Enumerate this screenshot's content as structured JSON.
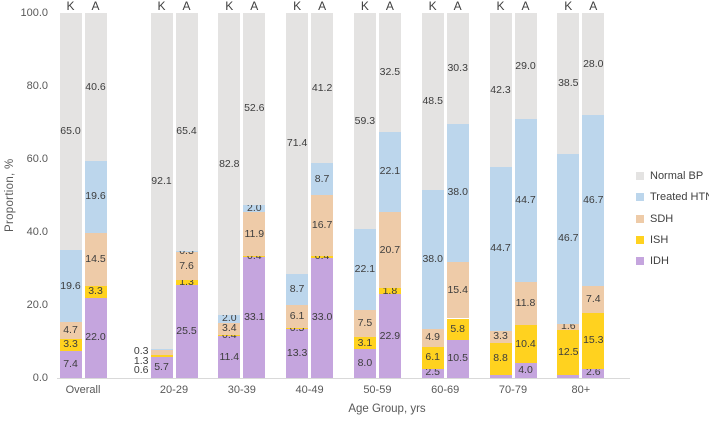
{
  "chart_data": {
    "type": "bar",
    "stacked": true,
    "title": "",
    "ylabel": "Proportion, %",
    "xlabel": "Age Group, yrs",
    "ylim": [
      0,
      100
    ],
    "yticks": [
      0,
      20,
      40,
      60,
      80,
      100
    ],
    "ytick_labels": [
      "0.0",
      "20.0",
      "40.0",
      "60.0",
      "80.0",
      "100.0"
    ],
    "grid": false,
    "bar_labels": [
      "K",
      "A"
    ],
    "categories": [
      "Overall",
      "20-29",
      "30-39",
      "40-49",
      "50-59",
      "60-69",
      "70-79",
      "80+"
    ],
    "series": [
      {
        "name": "IDH",
        "color": "#c5a5de",
        "K": [
          7.4,
          5.7,
          11.4,
          13.3,
          8.0,
          2.5,
          0.9,
          0.7
        ],
        "A": [
          22.0,
          25.5,
          33.1,
          33.0,
          22.9,
          10.5,
          4.0,
          2.6
        ]
      },
      {
        "name": "ISH",
        "color": "#ffd21f",
        "K": [
          3.3,
          0.6,
          0.4,
          0.5,
          3.1,
          6.1,
          8.8,
          12.5
        ],
        "A": [
          3.3,
          1.3,
          0.4,
          0.4,
          1.8,
          5.8,
          10.4,
          15.3
        ]
      },
      {
        "name": "SDH",
        "color": "#eecba8",
        "K": [
          4.7,
          1.3,
          3.4,
          6.1,
          7.5,
          4.9,
          3.3,
          1.6
        ],
        "A": [
          14.5,
          7.6,
          11.9,
          16.7,
          20.7,
          15.4,
          11.8,
          7.4
        ]
      },
      {
        "name": "Treated HTN",
        "color": "#bcd6ec",
        "K": [
          19.6,
          0.3,
          2.0,
          8.7,
          22.1,
          38.0,
          44.7,
          46.7
        ],
        "A": [
          19.6,
          0.3,
          2.0,
          8.7,
          22.1,
          38.0,
          44.7,
          46.7
        ]
      },
      {
        "name": "Normal BP",
        "color": "#e4e3e2",
        "K": [
          65.0,
          92.1,
          82.8,
          71.4,
          59.3,
          48.5,
          42.3,
          38.5
        ],
        "A": [
          40.6,
          65.4,
          52.6,
          41.2,
          32.5,
          30.3,
          29.0,
          28.0
        ]
      }
    ],
    "legend": [
      "Normal BP",
      "Treated HTN",
      "SDH",
      "ISH",
      "IDH"
    ],
    "legend_position": "right",
    "outside_labels": {
      "category": "20-29",
      "bar": "K",
      "series": [
        "Treated HTN",
        "SDH",
        "ISH"
      ]
    }
  }
}
